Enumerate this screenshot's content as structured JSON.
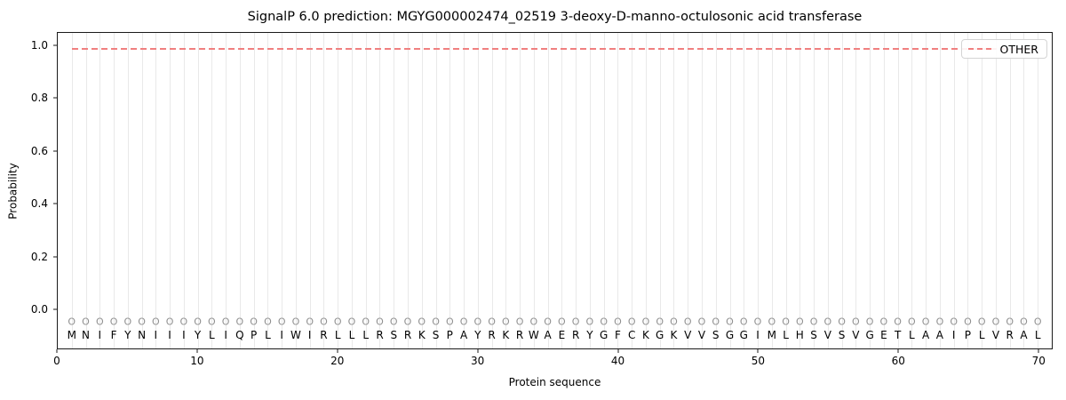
{
  "chart_data": {
    "type": "line",
    "title": "SignalP 6.0 prediction: MGYG000002474_02519 3-deoxy-D-manno-octulosonic acid transferase",
    "xlabel": "Protein sequence",
    "ylabel": "Probability",
    "xlim": [
      0,
      71
    ],
    "ylim": [
      -0.15,
      1.05
    ],
    "xticks": [
      {
        "v": 0,
        "label": "0"
      },
      {
        "v": 10,
        "label": "10"
      },
      {
        "v": 20,
        "label": "20"
      },
      {
        "v": 30,
        "label": "30"
      },
      {
        "v": 40,
        "label": "40"
      },
      {
        "v": 50,
        "label": "50"
      },
      {
        "v": 60,
        "label": "60"
      },
      {
        "v": 70,
        "label": "70"
      }
    ],
    "yticks": [
      {
        "v": 0.0,
        "label": "0.0"
      },
      {
        "v": 0.2,
        "label": "0.2"
      },
      {
        "v": 0.4,
        "label": "0.4"
      },
      {
        "v": 0.6,
        "label": "0.6"
      },
      {
        "v": 0.8,
        "label": "0.8"
      },
      {
        "v": 1.0,
        "label": "1.0"
      }
    ],
    "grid": {
      "vertical_per_residue": true,
      "color": "#e9e9e9"
    },
    "legend": {
      "position": "upper right",
      "entries": [
        {
          "label": "OTHER",
          "color": "#f08080",
          "linestyle": "dashed"
        }
      ]
    },
    "series": [
      {
        "name": "OTHER",
        "color": "#f08080",
        "linestyle": "dashed",
        "x_start": 1,
        "x_end": 70,
        "y_constant": 0.99
      }
    ],
    "sequence": "MNIFYNIIIYLIQPLIWIRLLLRSRKSPAYRKRWAERYGFCKGKVVSGGIMLHSVSVGETLAAIPLVRAL",
    "marker_row": {
      "symbol": "O",
      "y": -0.05,
      "color": "#909090"
    },
    "sequence_row": {
      "y": -0.1,
      "color": "#000000"
    }
  }
}
